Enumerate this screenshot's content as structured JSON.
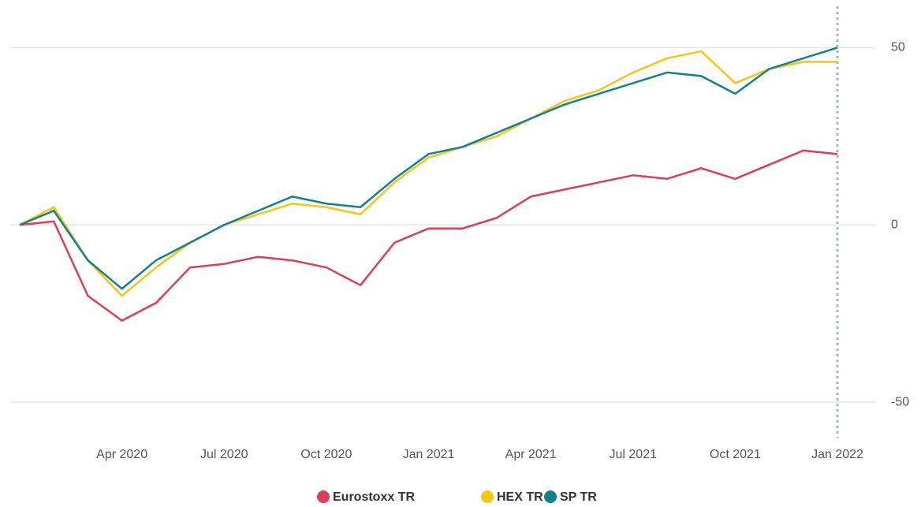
{
  "chart_data": {
    "type": "line",
    "x": [
      "2020-01",
      "2020-02",
      "2020-03",
      "2020-04",
      "2020-05",
      "2020-06",
      "2020-07",
      "2020-08",
      "2020-09",
      "2020-10",
      "2020-11",
      "2020-12",
      "2021-01",
      "2021-02",
      "2021-03",
      "2021-04",
      "2021-05",
      "2021-06",
      "2021-07",
      "2021-08",
      "2021-09",
      "2021-10",
      "2021-11",
      "2021-12",
      "2022-01"
    ],
    "series": [
      {
        "name": "Eurostoxx TR",
        "color": "#d93f55",
        "values": [
          0,
          1,
          -20,
          -27,
          -22,
          -12,
          -11,
          -9,
          -10,
          -12,
          -17,
          -5,
          -1,
          -1,
          2,
          8,
          10,
          12,
          14,
          13,
          16,
          13,
          17,
          21,
          20
        ]
      },
      {
        "name": "HEX TR",
        "color": "#f5c518",
        "values": [
          0,
          5,
          -10,
          -20,
          -12,
          -5,
          0,
          3,
          6,
          5,
          3,
          12,
          19,
          22,
          25,
          30,
          35,
          38,
          43,
          47,
          49,
          40,
          44,
          46,
          46
        ]
      },
      {
        "name": "SP TR",
        "color": "#137f8f",
        "values": [
          0,
          4,
          -10,
          -18,
          -10,
          -5,
          0,
          4,
          8,
          6,
          5,
          13,
          20,
          22,
          26,
          30,
          34,
          37,
          40,
          43,
          42,
          37,
          44,
          47,
          50
        ]
      }
    ],
    "xticks": [
      {
        "value": "2020-04",
        "label": "Apr 2020"
      },
      {
        "value": "2020-07",
        "label": "Jul 2020"
      },
      {
        "value": "2020-10",
        "label": "Oct 2020"
      },
      {
        "value": "2021-01",
        "label": "Jan 2021"
      },
      {
        "value": "2021-04",
        "label": "Apr 2021"
      },
      {
        "value": "2021-07",
        "label": "Jul 2021"
      },
      {
        "value": "2021-10",
        "label": "Oct 2021"
      },
      {
        "value": "2022-01",
        "label": "Jan 2022"
      }
    ],
    "ylim": [
      -60,
      63
    ],
    "yticks": [
      -50,
      0,
      50
    ],
    "grid": true,
    "legend": "bottom"
  }
}
